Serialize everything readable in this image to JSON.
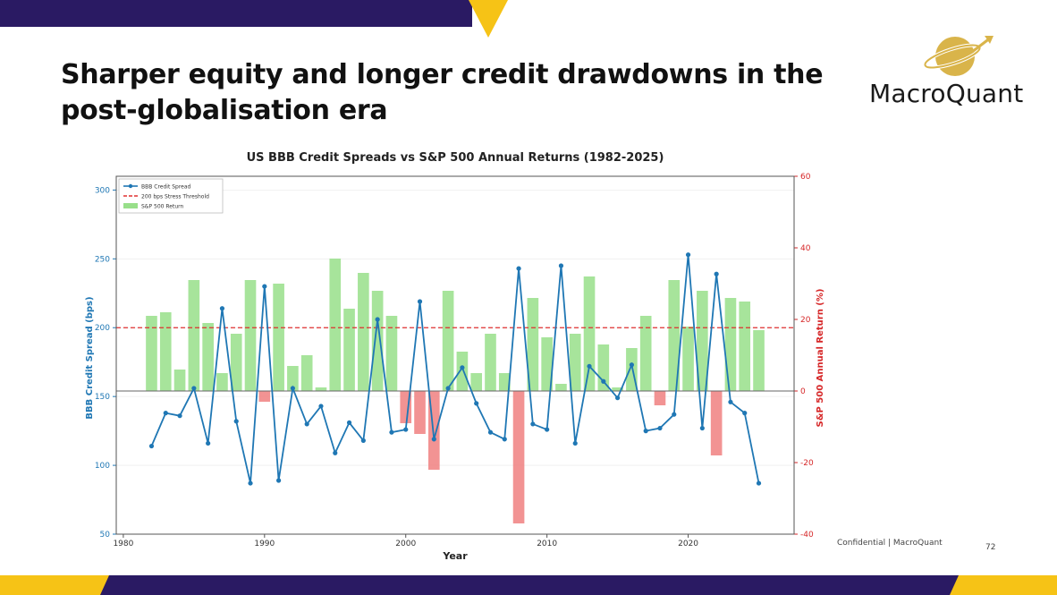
{
  "slide": {
    "title": "Sharper equity and longer credit drawdowns in the post-globalisation era",
    "logo_text": "MacroQuant",
    "footer": "Confidential | MacroQuant",
    "page_number": "72"
  },
  "colors": {
    "navy": "#2a1a63",
    "yellow": "#f6c316",
    "logo_gold": "#d9b44a",
    "spread_line": "#1f77b4",
    "bar_positive": "#98df8a",
    "bar_negative": "#f08080",
    "threshold": "#e03030",
    "right_axis": "#d62728"
  },
  "chart_data": {
    "type": "bar+line",
    "title": "US BBB Credit Spreads vs S&P 500 Annual Returns (1982-2025)",
    "xlabel": "Year",
    "ylabel_left": "BBB Credit Spread (bps)",
    "ylabel_right": "S&P 500 Annual Return (%)",
    "xlim": [
      1979.5,
      2027.5
    ],
    "ylim_left": [
      50,
      310
    ],
    "ylim_right": [
      -40,
      60
    ],
    "x_ticks": [
      1980,
      1990,
      2000,
      2010,
      2020
    ],
    "y_left_ticks": [
      50,
      100,
      150,
      200,
      250,
      300
    ],
    "y_right_ticks": [
      -40,
      -20,
      0,
      20,
      40,
      60
    ],
    "legend": {
      "position": "top-left",
      "entries": [
        "BBB Credit Spread",
        "200 bps Stress Threshold",
        "S&P 500 Return"
      ]
    },
    "threshold": {
      "name": "200 bps Stress Threshold",
      "value": 200
    },
    "years": [
      1982,
      1983,
      1984,
      1985,
      1986,
      1987,
      1988,
      1989,
      1990,
      1991,
      1992,
      1993,
      1994,
      1995,
      1996,
      1997,
      1998,
      1999,
      2000,
      2001,
      2002,
      2003,
      2004,
      2005,
      2006,
      2007,
      2008,
      2009,
      2010,
      2011,
      2012,
      2013,
      2014,
      2015,
      2016,
      2017,
      2018,
      2019,
      2020,
      2021,
      2022,
      2023,
      2024,
      2025
    ],
    "series": [
      {
        "name": "BBB Credit Spread",
        "axis": "left",
        "type": "line",
        "values": [
          114,
          138,
          136,
          156,
          116,
          214,
          132,
          87,
          230,
          89,
          156,
          130,
          143,
          109,
          131,
          118,
          206,
          124,
          126,
          219,
          119,
          156,
          171,
          145,
          124,
          119,
          243,
          130,
          126,
          245,
          116,
          172,
          161,
          149,
          173,
          125,
          127,
          137,
          253,
          127,
          239,
          146,
          138,
          87
        ]
      },
      {
        "name": "S&P 500 Return",
        "axis": "right",
        "type": "bar",
        "values": [
          21,
          22,
          6,
          31,
          19,
          5,
          16,
          31,
          -3,
          30,
          7,
          10,
          1,
          37,
          23,
          33,
          28,
          21,
          -9,
          -12,
          -22,
          28,
          11,
          5,
          16,
          5,
          -37,
          26,
          15,
          2,
          16,
          32,
          13,
          1,
          12,
          21,
          -4,
          31,
          18,
          28,
          -18,
          26,
          25,
          17
        ]
      }
    ]
  }
}
